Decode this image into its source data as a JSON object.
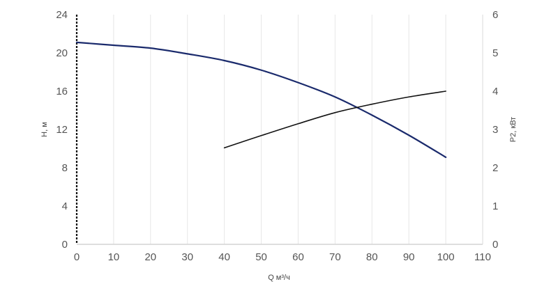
{
  "chart_data": {
    "type": "line",
    "xlabel": "Q м³/ч",
    "ylabel": "H, м",
    "y2label": "P2, кВт",
    "xlim": [
      0,
      110
    ],
    "ylim": [
      0,
      24
    ],
    "y2lim": [
      0,
      6
    ],
    "x_ticks": [
      "0",
      "10",
      "20",
      "30",
      "40",
      "50",
      "60",
      "70",
      "80",
      "90",
      "100",
      "110"
    ],
    "y_ticks": [
      "0",
      "4",
      "8",
      "12",
      "16",
      "20",
      "24"
    ],
    "y2_ticks": [
      "0",
      "1",
      "2",
      "3",
      "4",
      "5",
      "6"
    ],
    "grid": "vertical",
    "series": [
      {
        "axis": "left",
        "color": "#1a2a6c",
        "x": [
          0,
          10,
          20,
          30,
          40,
          50,
          60,
          70,
          80,
          90,
          100
        ],
        "y": [
          21.1,
          20.8,
          20.5,
          19.9,
          19.2,
          18.2,
          16.9,
          15.4,
          13.5,
          11.4,
          9.1
        ]
      },
      {
        "axis": "right",
        "color": "#111111",
        "x": [
          40,
          50,
          60,
          70,
          80,
          90,
          100
        ],
        "y": [
          2.52,
          2.84,
          3.15,
          3.44,
          3.66,
          3.85,
          4.0
        ]
      }
    ]
  }
}
